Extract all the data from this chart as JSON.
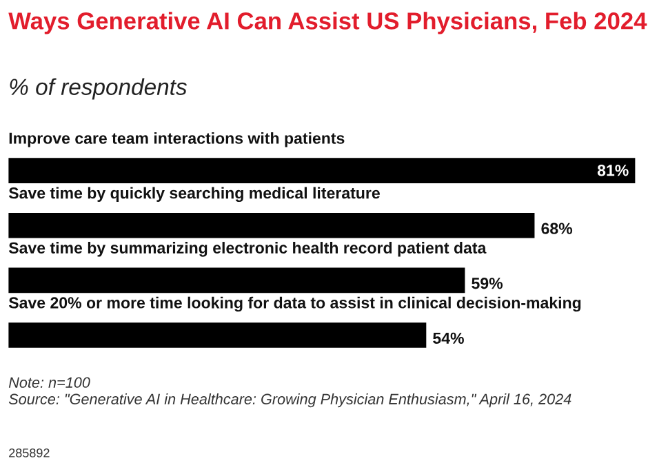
{
  "chart_data": {
    "type": "bar",
    "orientation": "horizontal",
    "title": "Ways Generative AI Can Assist US Physicians, Feb 2024",
    "subtitle": "% of respondents",
    "categories": [
      "Improve care team interactions with patients",
      "Save time by quickly searching medical literature",
      "Save time by summarizing electronic health record patient data",
      "Save 20% or more time looking for data to assist in clinical decision-making"
    ],
    "values": [
      81,
      68,
      59,
      54
    ],
    "color": "#000000",
    "value_labels": [
      "81%",
      "68%",
      "59%",
      "54%"
    ],
    "annotations": [
      "Note: n=100",
      "Source: \"Generative AI in Healthcare: Growing Physician Enthusiasm,\" April 16, 2024",
      "285892"
    ]
  }
}
